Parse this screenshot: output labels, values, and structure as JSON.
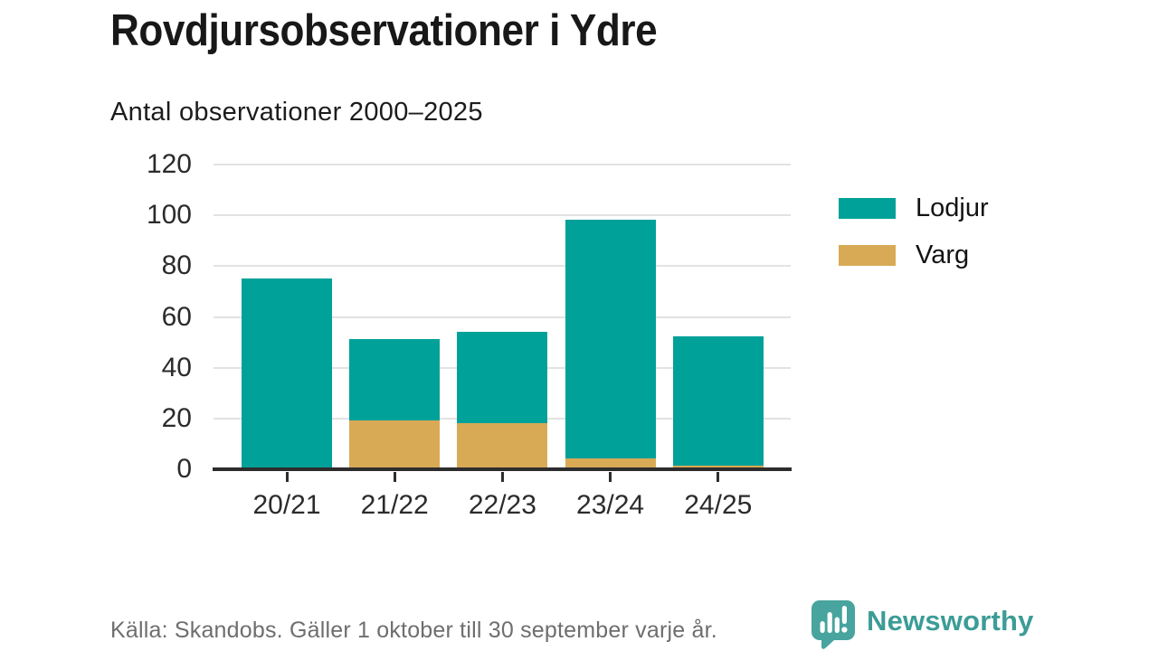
{
  "chart_data": {
    "type": "bar",
    "stacked": true,
    "title": "Rovdjursobservationer i Ydre",
    "subtitle": "Antal observationer 2000–2025",
    "categories": [
      "20/21",
      "21/22",
      "22/23",
      "23/24",
      "24/25"
    ],
    "series": [
      {
        "name": "Lodjur",
        "color": "#00a199",
        "values": [
          75,
          32,
          36,
          94,
          51
        ]
      },
      {
        "name": "Varg",
        "color": "#d9aa55",
        "values": [
          1,
          20,
          19,
          5,
          2
        ]
      }
    ],
    "totals": [
      76,
      52,
      55,
      99,
      53
    ],
    "xlabel": "",
    "ylabel": "",
    "ylim": [
      0,
      120
    ],
    "yticks": [
      0,
      20,
      40,
      60,
      80,
      100,
      120
    ],
    "grid": true,
    "legend_position": "right",
    "source": "Källa: Skandobs. Gäller 1 oktober till 30 september varje år."
  },
  "branding": {
    "name": "Newsworthy",
    "icon": "speech-bubble-bar-chart-icon",
    "color": "#3c9c96"
  }
}
